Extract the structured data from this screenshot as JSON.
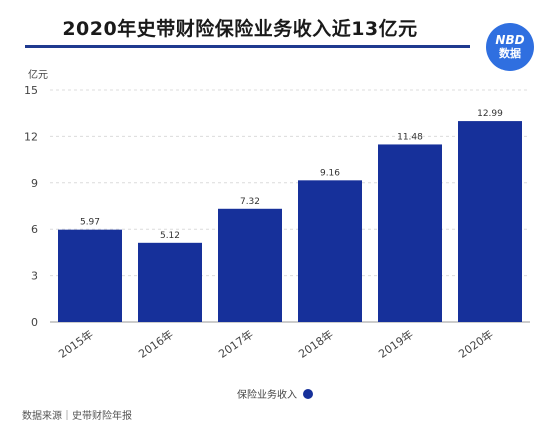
{
  "header": {
    "title": "2020年史带财险保险业务收入近13亿元",
    "logo_top": "NBD",
    "logo_bottom": "数据"
  },
  "colors": {
    "bar": "#16309a",
    "title_rule": "#1f3a8f",
    "logo_bg": "#2f6fe0",
    "grid": "#dcdcdc"
  },
  "chart_data": {
    "type": "bar",
    "title": "2020年史带财险保险业务收入近13亿元",
    "ylabel": "亿元",
    "xlabel": "",
    "categories": [
      "2015年",
      "2016年",
      "2017年",
      "2018年",
      "2019年",
      "2020年"
    ],
    "series": [
      {
        "name": "保险业务收入",
        "values": [
          5.97,
          5.12,
          7.32,
          9.16,
          11.48,
          12.99
        ]
      }
    ],
    "value_labels": [
      "5.97",
      "5.12",
      "7.32",
      "9.16",
      "11.48",
      "12.99"
    ],
    "ylim": [
      0,
      15
    ],
    "yticks": [
      "0",
      "3",
      "6",
      "9",
      "12",
      "15"
    ],
    "grid": true,
    "legend": "bottom"
  },
  "source": "数据来源｜史带财险年报"
}
